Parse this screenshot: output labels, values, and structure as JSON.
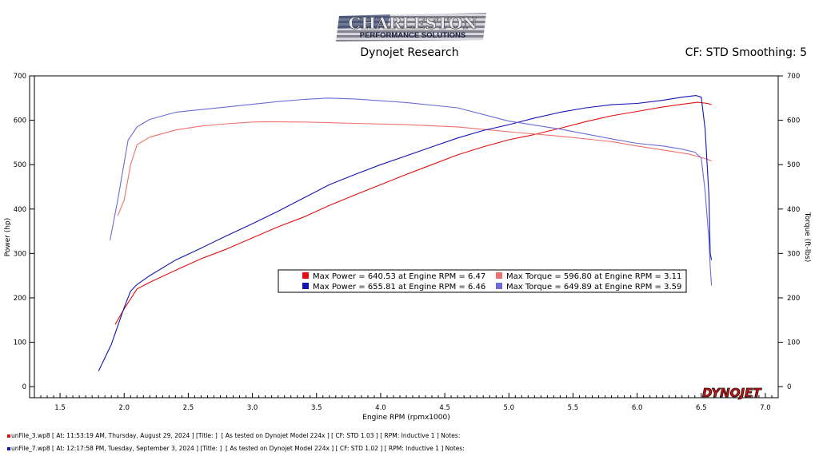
{
  "logo": {
    "line1": "CHARLESTON",
    "line2": "PERFORMANCE SOLUTIONS"
  },
  "header": {
    "subtitle": "Dynojet Research",
    "cf": "CF: STD Smoothing: 5"
  },
  "brand_mark": "DYNOJET",
  "footer": [
    {
      "text": "unFile_3.wp8 [ At: 11:53:19 AM, Thursday, August 29, 2024 ] [Title: ]  [ As tested on Dynojet Model 224x ] [ CF: STD 1.03 ] [ RPM: Inductive 1 ] Notes:",
      "color": "#e01010"
    },
    {
      "text": "unFile_7.wp8 [ At: 12:17:58 PM, Tuesday, September 3, 2024 ] [Title: ]  [ As tested on Dynojet Model 224x ] [ CF: STD 1.02 ] [ RPM: Inductive 1 ] Notes:",
      "color": "#1414b4"
    }
  ],
  "chart_data": {
    "type": "line",
    "xlabel": "Engine RPM (rpmx1000)",
    "ylabel": "Power (hp)",
    "y2label": "Torque (ft-lbs)",
    "xlim": [
      1.3,
      7.1
    ],
    "ylim": [
      -25,
      700
    ],
    "xticks": [
      1.5,
      2.0,
      2.5,
      3.0,
      3.5,
      4.0,
      4.5,
      5.0,
      5.5,
      6.0,
      6.5,
      7.0
    ],
    "yticks": [
      0,
      100,
      200,
      300,
      400,
      500,
      600,
      700
    ],
    "legend": [
      {
        "text": "Max Power = 640.53 at Engine RPM = 6.47",
        "color": "#e01010"
      },
      {
        "text": "Max Torque = 596.80 at Engine RPM = 3.11",
        "color": "#f07070"
      },
      {
        "text": "Max Power = 655.81 at Engine RPM = 6.46",
        "color": "#1414b4"
      },
      {
        "text": "Max Torque = 649.89 at Engine RPM = 3.59",
        "color": "#6b6bd6"
      }
    ],
    "series": [
      {
        "color": "#e01010",
        "x": [
          1.93,
          2.0,
          2.1,
          2.2,
          2.4,
          2.6,
          2.8,
          3.0,
          3.2,
          3.4,
          3.6,
          3.8,
          4.0,
          4.2,
          4.4,
          4.6,
          4.8,
          5.0,
          5.2,
          5.4,
          5.6,
          5.8,
          6.0,
          6.2,
          6.35,
          6.47,
          6.55,
          6.58
        ],
        "y": [
          140,
          175,
          220,
          235,
          262,
          288,
          310,
          335,
          360,
          382,
          408,
          432,
          455,
          478,
          500,
          522,
          540,
          556,
          568,
          582,
          597,
          610,
          620,
          630,
          636,
          640.5,
          638,
          635
        ]
      },
      {
        "color": "#f07070",
        "x": [
          1.95,
          2.0,
          2.05,
          2.1,
          2.2,
          2.4,
          2.6,
          2.8,
          3.0,
          3.11,
          3.4,
          3.8,
          4.2,
          4.6,
          5.0,
          5.4,
          5.8,
          6.0,
          6.2,
          6.4,
          6.55,
          6.58
        ],
        "y": [
          385,
          420,
          500,
          545,
          562,
          578,
          587,
          592,
          596,
          596.8,
          596,
          593,
          590,
          585,
          574,
          564,
          552,
          542,
          533,
          524,
          512,
          508
        ]
      },
      {
        "color": "#1414b4",
        "x": [
          1.8,
          1.9,
          2.0,
          2.05,
          2.1,
          2.2,
          2.4,
          2.6,
          2.8,
          3.0,
          3.2,
          3.4,
          3.6,
          3.8,
          4.0,
          4.2,
          4.4,
          4.6,
          4.8,
          5.0,
          5.2,
          5.4,
          5.6,
          5.8,
          6.0,
          6.2,
          6.35,
          6.46,
          6.5,
          6.53,
          6.56,
          6.57,
          6.58
        ],
        "y": [
          35,
          95,
          178,
          215,
          230,
          250,
          285,
          312,
          340,
          367,
          395,
          425,
          455,
          478,
          500,
          520,
          540,
          560,
          577,
          590,
          605,
          618,
          628,
          635,
          638,
          645,
          652,
          655.8,
          652,
          580,
          430,
          300,
          285
        ]
      },
      {
        "color": "#6b6bd6",
        "x": [
          1.89,
          1.95,
          2.03,
          2.1,
          2.2,
          2.4,
          2.6,
          2.8,
          3.0,
          3.2,
          3.4,
          3.59,
          3.8,
          4.2,
          4.6,
          5.0,
          5.4,
          5.8,
          6.0,
          6.2,
          6.35,
          6.45,
          6.5,
          6.53,
          6.56,
          6.57,
          6.58
        ],
        "y": [
          330,
          420,
          555,
          585,
          602,
          618,
          624,
          630,
          636,
          642,
          647,
          649.9,
          648,
          640,
          628,
          598,
          580,
          558,
          548,
          542,
          535,
          528,
          515,
          440,
          330,
          270,
          228
        ]
      }
    ]
  }
}
